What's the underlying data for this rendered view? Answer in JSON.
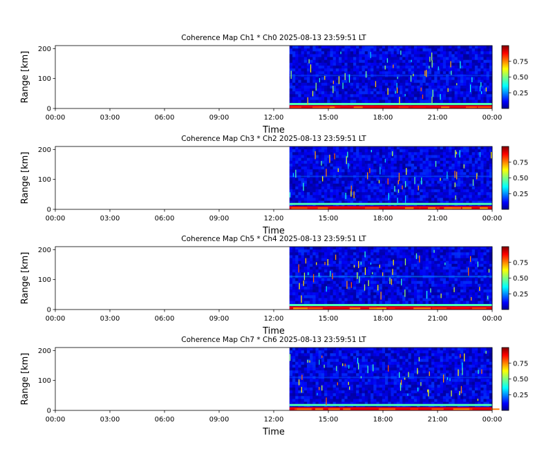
{
  "colors": {
    "low": "#00008f",
    "mid": "#7fff7f",
    "high": "#800000",
    "axis": "#000000"
  },
  "chart_data": [
    {
      "type": "heatmap",
      "title": "Coherence Map Ch1 * Ch0 2025-08-13 23:59:51 LT",
      "xlabel": "Time",
      "ylabel": "Range [km]",
      "x_ticks": [
        "00:00",
        "03:00",
        "06:00",
        "09:00",
        "12:00",
        "15:00",
        "18:00",
        "21:00",
        "00:00"
      ],
      "y_ticks": [
        0,
        100,
        200
      ],
      "ylim": [
        0,
        210
      ],
      "colorbar": {
        "ticks": [
          "0.25",
          "0.50",
          "0.75"
        ],
        "range": [
          0,
          1
        ],
        "colormap": "jet"
      },
      "data_start": "12:52",
      "data_end": "24:00",
      "features": [
        {
          "range_km": 5,
          "coherence": 0.9,
          "label": "near-range high coherence band"
        },
        {
          "range_km": 15,
          "coherence": 0.45,
          "label": "near-range band"
        },
        {
          "range_km": 110,
          "coherence": 0.2,
          "label": "faint layer"
        }
      ]
    },
    {
      "type": "heatmap",
      "title": "Coherence Map Ch3 * Ch2 2025-08-13 23:59:51 LT",
      "xlabel": "Time",
      "ylabel": "Range [km]",
      "x_ticks": [
        "00:00",
        "03:00",
        "06:00",
        "09:00",
        "12:00",
        "15:00",
        "18:00",
        "21:00",
        "00:00"
      ],
      "y_ticks": [
        0,
        100,
        200
      ],
      "ylim": [
        0,
        210
      ],
      "colorbar": {
        "ticks": [
          "0.25",
          "0.50",
          "0.75"
        ],
        "range": [
          0,
          1
        ],
        "colormap": "jet"
      },
      "data_start": "12:52",
      "data_end": "24:00",
      "features": [
        {
          "range_km": 5,
          "coherence": 0.9,
          "label": "near-range high coherence band"
        },
        {
          "range_km": 18,
          "coherence": 0.45,
          "label": "near-range band"
        },
        {
          "range_km": 110,
          "coherence": 0.22,
          "label": "faint layer"
        }
      ]
    },
    {
      "type": "heatmap",
      "title": "Coherence Map Ch5 * Ch4 2025-08-13 23:59:51 LT",
      "xlabel": "Time",
      "ylabel": "Range [km]",
      "x_ticks": [
        "00:00",
        "03:00",
        "06:00",
        "09:00",
        "12:00",
        "15:00",
        "18:00",
        "21:00",
        "00:00"
      ],
      "y_ticks": [
        0,
        100,
        200
      ],
      "ylim": [
        0,
        210
      ],
      "colorbar": {
        "ticks": [
          "0.25",
          "0.50",
          "0.75"
        ],
        "range": [
          0,
          1
        ],
        "colormap": "jet"
      },
      "data_start": "12:52",
      "data_end": "24:00",
      "features": [
        {
          "range_km": 5,
          "coherence": 0.9,
          "label": "near-range high coherence band"
        },
        {
          "range_km": 15,
          "coherence": 0.45,
          "label": "near-range band"
        },
        {
          "range_km": 110,
          "coherence": 0.28,
          "label": "layer"
        }
      ]
    },
    {
      "type": "heatmap",
      "title": "Coherence Map Ch7 * Ch6 2025-08-13 23:59:51 LT",
      "xlabel": "Time",
      "ylabel": "Range [km]",
      "x_ticks": [
        "00:00",
        "03:00",
        "06:00",
        "09:00",
        "12:00",
        "15:00",
        "18:00",
        "21:00",
        "00:00"
      ],
      "y_ticks": [
        0,
        100,
        200
      ],
      "ylim": [
        0,
        210
      ],
      "colorbar": {
        "ticks": [
          "0.25",
          "0.50",
          "0.75"
        ],
        "range": [
          0,
          1
        ],
        "colormap": "jet"
      },
      "data_start": "12:52",
      "data_end": "24:00",
      "features": [
        {
          "range_km": 5,
          "coherence": 0.9,
          "label": "near-range high coherence band"
        },
        {
          "range_km": 18,
          "coherence": 0.45,
          "label": "near-range band"
        },
        {
          "range_km": 110,
          "coherence": 0.2,
          "label": "faint layer"
        }
      ]
    }
  ]
}
